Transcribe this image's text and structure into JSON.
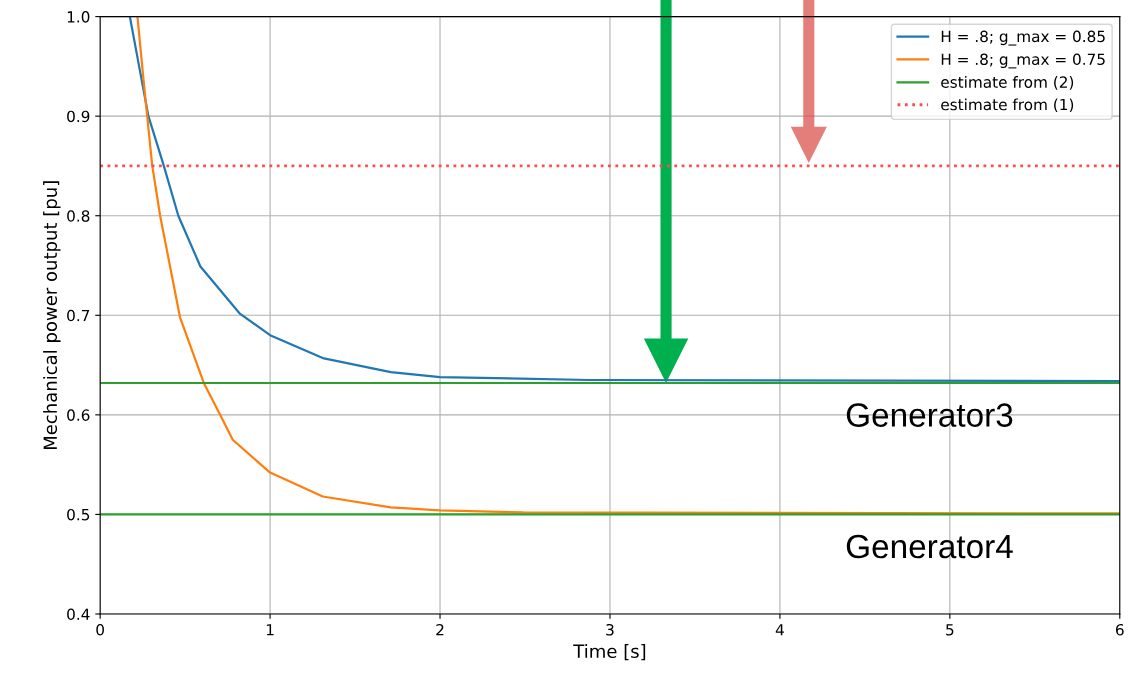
{
  "chart_data": {
    "type": "line",
    "xlabel": "Time [s]",
    "ylabel": "Mechanical power output [pu]",
    "xlim": [
      0,
      6
    ],
    "ylim": [
      0.4,
      1.0
    ],
    "xticks": [
      0,
      1,
      2,
      3,
      4,
      5,
      6
    ],
    "yticks": [
      0.4,
      0.5,
      0.6,
      0.7,
      0.8,
      0.9,
      {
        "value": 1.0,
        "label": "1.0"
      }
    ],
    "grid": true,
    "legend": "top right",
    "series": [
      {
        "name": "H = .8; g_max = 0.85",
        "color": "#1f77b4",
        "x": [
          0.176,
          0.284,
          0.373,
          0.46,
          0.59,
          0.82,
          1.0,
          1.31,
          1.71,
          2.0,
          2.88,
          6
        ],
        "values": [
          0.999,
          0.9,
          0.851,
          0.8,
          0.749,
          0.702,
          0.68,
          0.657,
          0.643,
          0.638,
          0.635,
          0.634
        ]
      },
      {
        "name": "H = .8; g_max = 0.75",
        "color": "#ff7f0e",
        "x": [
          0.22,
          0.255,
          0.306,
          0.353,
          0.47,
          0.61,
          0.706,
          0.78,
          1.0,
          1.31,
          1.71,
          2.0,
          2.49,
          6
        ],
        "values": [
          0.999,
          0.937,
          0.851,
          0.8,
          0.698,
          0.632,
          0.6,
          0.575,
          0.542,
          0.518,
          0.507,
          0.504,
          0.502,
          0.501
        ]
      },
      {
        "name": "estimate from (2)",
        "color": "#2ca02c",
        "x": [
          0,
          6
        ],
        "values": [
          0.632,
          0.632
        ]
      },
      {
        "color": "#2ca02c",
        "x": [
          0,
          6
        ],
        "values": [
          0.5,
          0.5
        ]
      },
      {
        "name": "estimate from (1)",
        "color": "#ff4d4d",
        "line_style": "dotted",
        "x": [
          0,
          6
        ],
        "values": [
          0.85,
          0.85
        ]
      }
    ],
    "annotations": [
      {
        "text": "Generator3",
        "x": 4.88,
        "y": 0.632
      },
      {
        "text": "Generator4",
        "x": 4.88,
        "y": 0.5
      }
    ]
  }
}
